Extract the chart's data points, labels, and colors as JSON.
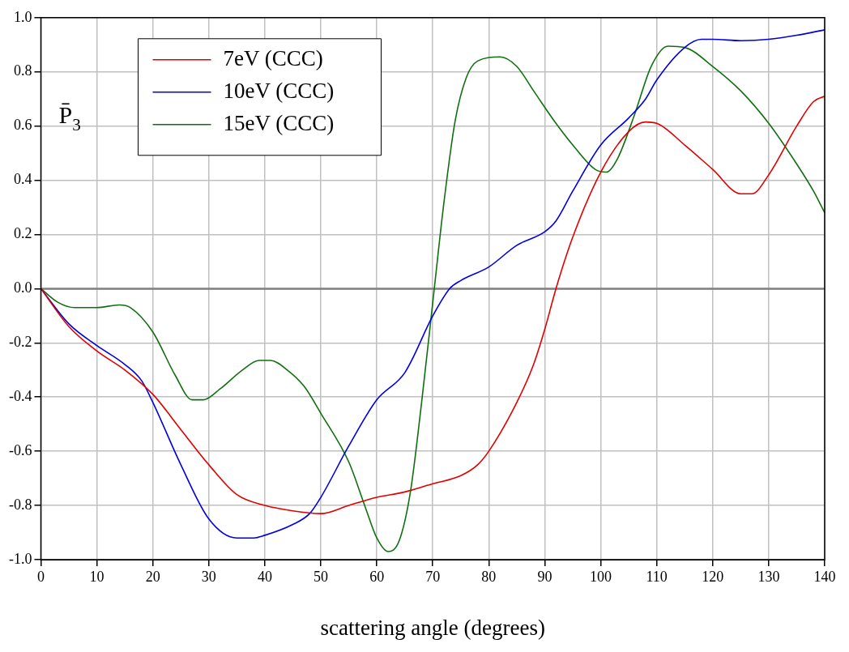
{
  "chart_data": {
    "type": "line",
    "ylabel": "P̄$_{3}$",
    "xlabel": "scattering angle (degrees)",
    "xlim": [
      0,
      140
    ],
    "xticks": [
      0,
      10,
      20,
      30,
      40,
      50,
      60,
      70,
      80,
      90,
      100,
      110,
      120,
      130,
      140
    ],
    "ylim": [
      -1,
      1
    ],
    "yticks": [
      {
        "value": -1,
        "label": "-1.0"
      },
      {
        "value": -0.8,
        "label": "-0.8"
      },
      {
        "value": -0.6,
        "label": "-0.6"
      },
      {
        "value": -0.4,
        "label": "-0.4"
      },
      {
        "value": -0.2,
        "label": "-0.2"
      },
      {
        "value": 0,
        "label": "0.0"
      },
      {
        "value": 0.2,
        "label": "0.2"
      },
      {
        "value": 0.4,
        "label": "0.4"
      },
      {
        "value": 0.6,
        "label": "0.6"
      },
      {
        "value": 0.8,
        "label": "0.8"
      },
      {
        "value": 1,
        "label": "1.0"
      }
    ],
    "grid": true,
    "legend": "top left",
    "marker": "none",
    "line_style": "solid",
    "ref_lines": [
      {
        "axis": "y",
        "value": 0,
        "color": "#808080"
      }
    ],
    "series": [
      {
        "name": "7eV (CCC)",
        "color": "#e00000",
        "x": [
          0,
          5,
          10,
          15,
          20,
          25,
          30,
          35,
          40,
          45,
          50,
          55,
          60,
          65,
          70,
          75,
          78,
          80,
          85,
          88,
          90,
          92,
          95,
          100,
          105,
          108,
          110,
          115,
          120,
          125,
          127,
          130,
          135,
          138,
          140
        ],
        "values": [
          0,
          -0.14,
          -0.23,
          -0.3,
          -0.39,
          -0.52,
          -0.65,
          -0.76,
          -0.8,
          -0.82,
          -0.83,
          -0.8,
          -0.77,
          -0.75,
          -0.72,
          -0.69,
          -0.65,
          -0.6,
          -0.42,
          -0.28,
          -0.15,
          0,
          0.19,
          0.43,
          0.58,
          0.615,
          0.61,
          0.53,
          0.44,
          0.35,
          0.35,
          0.42,
          0.6,
          0.69,
          0.71
        ]
      },
      {
        "name": "10eV (CCC)",
        "color": "#0000e0",
        "x": [
          0,
          5,
          10,
          15,
          18,
          20,
          25,
          30,
          35,
          38,
          40,
          45,
          48,
          50,
          55,
          60,
          65,
          70,
          73,
          75,
          80,
          85,
          90,
          92,
          95,
          100,
          105,
          108,
          110,
          115,
          118,
          120,
          125,
          130,
          135,
          140
        ],
        "values": [
          0,
          -0.13,
          -0.21,
          -0.28,
          -0.34,
          -0.42,
          -0.65,
          -0.85,
          -0.92,
          -0.92,
          -0.91,
          -0.87,
          -0.83,
          -0.77,
          -0.58,
          -0.41,
          -0.31,
          -0.1,
          0,
          0.03,
          0.08,
          0.16,
          0.21,
          0.25,
          0.36,
          0.53,
          0.63,
          0.7,
          0.77,
          0.89,
          0.92,
          0.92,
          0.915,
          0.92,
          0.935,
          0.955
        ]
      },
      {
        "name": "15eV (CCC)",
        "color": "#107010",
        "x": [
          0,
          3,
          6,
          10,
          14,
          16,
          20,
          24,
          27,
          29,
          32,
          36,
          39,
          41,
          44,
          47,
          50,
          55,
          58,
          60,
          62,
          64,
          66,
          68,
          70,
          72,
          74,
          76,
          78,
          82,
          85,
          88,
          92,
          95,
          99,
          101,
          103,
          106,
          109,
          112,
          115,
          120,
          125,
          130,
          135,
          138,
          140
        ],
        "values": [
          0,
          -0.05,
          -0.07,
          -0.07,
          -0.06,
          -0.07,
          -0.16,
          -0.32,
          -0.41,
          -0.41,
          -0.37,
          -0.3,
          -0.265,
          -0.265,
          -0.3,
          -0.36,
          -0.46,
          -0.64,
          -0.81,
          -0.92,
          -0.97,
          -0.93,
          -0.75,
          -0.42,
          -0.05,
          0.32,
          0.62,
          0.78,
          0.84,
          0.855,
          0.82,
          0.73,
          0.61,
          0.53,
          0.44,
          0.43,
          0.48,
          0.64,
          0.82,
          0.895,
          0.89,
          0.82,
          0.73,
          0.61,
          0.46,
          0.36,
          0.28
        ]
      }
    ]
  }
}
